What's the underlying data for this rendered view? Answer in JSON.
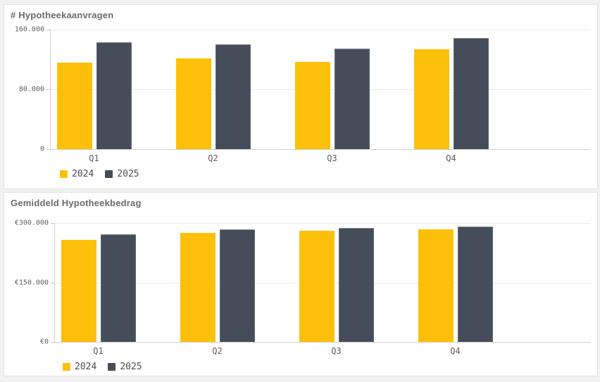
{
  "page": {
    "background_color": "#f1f1f1",
    "panel_border_color": "#e2e2e2"
  },
  "chart_data": [
    {
      "type": "bar",
      "title": "# Hypotheekaanvragen",
      "categories": [
        "Q1",
        "Q2",
        "Q3",
        "Q4"
      ],
      "series": [
        {
          "name": "2024",
          "color": "#FDC00A",
          "values": [
            116000,
            121000,
            117000,
            134000
          ]
        },
        {
          "name": "2025",
          "color": "#464D5A",
          "values": [
            143000,
            140000,
            135000,
            149000
          ]
        }
      ],
      "ylim": [
        0,
        160000
      ],
      "yticks": [
        {
          "value": 0,
          "label": "0"
        },
        {
          "value": 80000,
          "label": "80.000"
        },
        {
          "value": 160000,
          "label": "160.000"
        }
      ],
      "grid": true,
      "legend_position": "bottom-left"
    },
    {
      "type": "bar",
      "title": "Gemiddeld Hypotheekbedrag",
      "categories": [
        "Q1",
        "Q2",
        "Q3",
        "Q4"
      ],
      "series": [
        {
          "name": "2024",
          "color": "#FDC00A",
          "values": [
            258000,
            276000,
            281000,
            284000
          ]
        },
        {
          "name": "2025",
          "color": "#464D5A",
          "values": [
            272000,
            284000,
            287000,
            291000
          ]
        }
      ],
      "ylim": [
        0,
        300000
      ],
      "yticks": [
        {
          "value": 0,
          "label": "€0"
        },
        {
          "value": 150000,
          "label": "€150.000"
        },
        {
          "value": 300000,
          "label": "€300.000"
        }
      ],
      "grid": true,
      "legend_position": "bottom-left"
    }
  ]
}
